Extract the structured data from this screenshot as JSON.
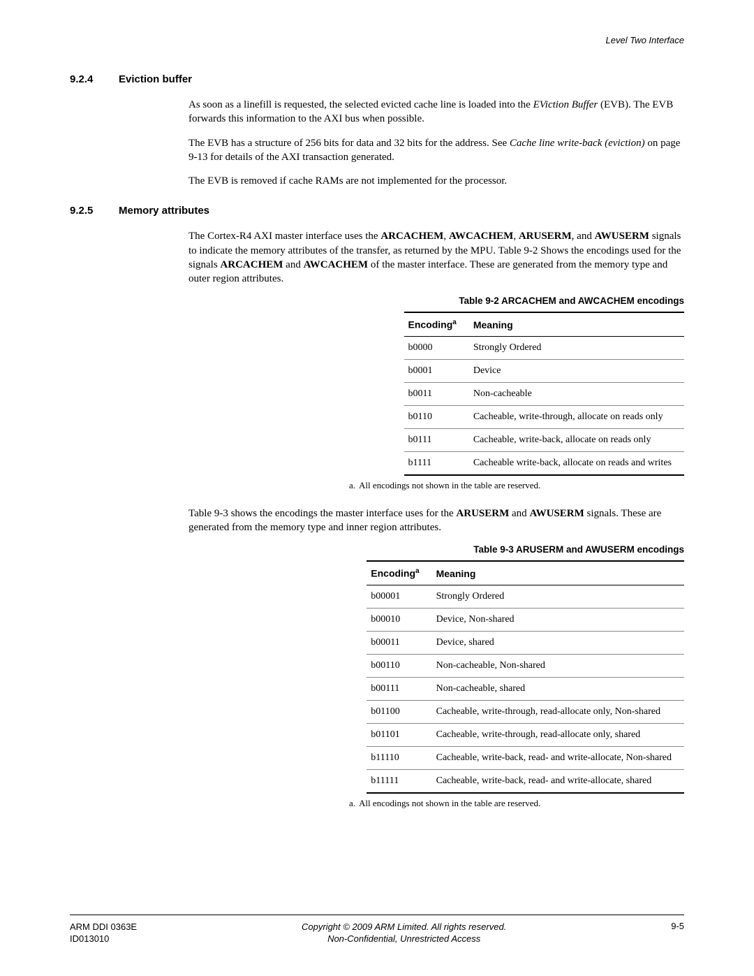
{
  "header": {
    "right": "Level Two Interface"
  },
  "section1": {
    "number": "9.2.4",
    "title": "Eviction buffer",
    "p1_a": "As soon as a linefill is requested, the selected evicted cache line is loaded into the ",
    "p1_b_italic": "EViction Buffer",
    "p1_c": " (EVB). The EVB forwards this information to the AXI bus when possible.",
    "p2_a": "The EVB has a structure of 256 bits for data and 32 bits for the address. See ",
    "p2_b_italic": "Cache line write-back (eviction)",
    "p2_c": " on page 9-13 for details of the AXI transaction generated.",
    "p3": "The EVB is removed if cache RAMs are not implemented for the processor."
  },
  "section2": {
    "number": "9.2.5",
    "title": "Memory attributes",
    "p1_a": "The Cortex-R4 AXI master interface uses the ",
    "p1_b_bold": "ARCACHEM",
    "p1_c": ", ",
    "p1_d_bold": "AWCACHEM",
    "p1_e": ", ",
    "p1_f_bold": "ARUSERM",
    "p1_g": ", and ",
    "p1_h_bold": "AWUSERM",
    "p1_i": " signals to indicate the memory attributes of the transfer, as returned by the MPU. Table 9-2 Shows the encodings used for the signals ",
    "p1_j_bold": "ARCACHEM",
    "p1_k": " and ",
    "p1_l_bold": "AWCACHEM",
    "p1_m": " of the master interface. These are generated from the memory type and outer region attributes.",
    "p2_a": "Table 9-3 shows the encodings the master interface uses for the ",
    "p2_b_bold": "ARUSERM",
    "p2_c": " and ",
    "p2_d_bold": "AWUSERM",
    "p2_e": " signals. These are generated from the memory type and inner region attributes."
  },
  "table1": {
    "caption": "Table 9-2 ARCACHEM and AWCACHEM encodings",
    "col1": "Encoding",
    "col1_sup": "a",
    "col2": "Meaning",
    "rows": [
      [
        "b0000",
        "Strongly Ordered"
      ],
      [
        "b0001",
        "Device"
      ],
      [
        "b0011",
        "Non-cacheable"
      ],
      [
        "b0110",
        "Cacheable, write-through, allocate on reads only"
      ],
      [
        "b0111",
        "Cacheable, write-back, allocate on reads only"
      ],
      [
        "b1111",
        "Cacheable write-back, allocate on reads and writes"
      ]
    ],
    "note_letter": "a.",
    "note_text": "All encodings not shown in the table are reserved."
  },
  "table2": {
    "caption": "Table 9-3 ARUSERM and AWUSERM encodings",
    "col1": "Encoding",
    "col1_sup": "a",
    "col2": "Meaning",
    "rows": [
      [
        "b00001",
        "Strongly Ordered"
      ],
      [
        "b00010",
        "Device, Non-shared"
      ],
      [
        "b00011",
        "Device, shared"
      ],
      [
        "b00110",
        "Non-cacheable, Non-shared"
      ],
      [
        "b00111",
        "Non-cacheable, shared"
      ],
      [
        "b01100",
        "Cacheable, write-through, read-allocate only, Non-shared"
      ],
      [
        "b01101",
        "Cacheable, write-through, read-allocate only, shared"
      ],
      [
        "b11110",
        "Cacheable, write-back, read- and write-allocate, Non-shared"
      ],
      [
        "b11111",
        "Cacheable, write-back, read- and write-allocate, shared"
      ]
    ],
    "note_letter": "a.",
    "note_text": "All encodings not shown in the table are reserved."
  },
  "footer": {
    "left_line1": "ARM DDI 0363E",
    "left_line2": "ID013010",
    "center_line1": "Copyright © 2009 ARM Limited. All rights reserved.",
    "center_line2": "Non-Confidential, Unrestricted Access",
    "right": "9-5"
  }
}
